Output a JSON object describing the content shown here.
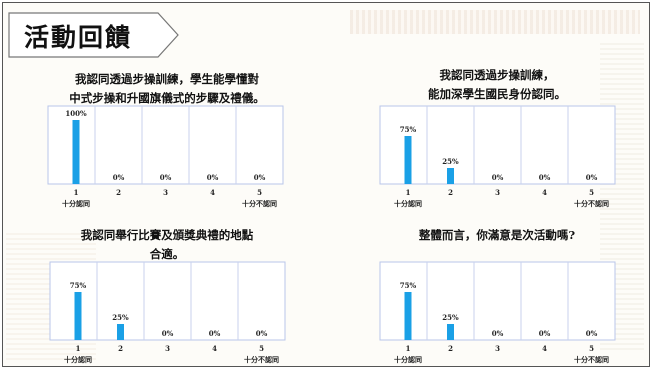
{
  "page_title": "活動回饋",
  "chart_data": [
    {
      "type": "bar",
      "title": "我認同透過步操訓練，學生能學懂對中式步操和升國旗儀式的步驟及禮儀。",
      "title_lines": [
        "我認同透過步操訓練，學生能學懂對",
        "中式步操和升國旗儀式的步驟及禮儀。"
      ],
      "categories": [
        "1",
        "2",
        "3",
        "4",
        "5"
      ],
      "values": [
        100,
        0,
        0,
        0,
        0
      ],
      "data_labels": [
        "100%",
        "0%",
        "0%",
        "0%",
        "0%"
      ],
      "scale_left": "十分認同",
      "scale_right": "十分不認同",
      "ylim": [
        0,
        100
      ],
      "bar_color": "#1aa0e6"
    },
    {
      "type": "bar",
      "title": "我認同透過步操訓練，能加深學生國民身份認同。",
      "title_lines": [
        "我認同透過步操訓練，",
        "能加深學生國民身份認同。"
      ],
      "categories": [
        "1",
        "2",
        "3",
        "4",
        "5"
      ],
      "values": [
        75,
        25,
        0,
        0,
        0
      ],
      "data_labels": [
        "75%",
        "25%",
        "0%",
        "0%",
        "0%"
      ],
      "scale_left": "十分認同",
      "scale_right": "十分不認同",
      "ylim": [
        0,
        100
      ],
      "bar_color": "#1aa0e6"
    },
    {
      "type": "bar",
      "title": "我認同舉行比賽及頒獎典禮的地點合適。",
      "title_lines": [
        "我認同舉行比賽及頒獎典禮的地點",
        "合適。"
      ],
      "categories": [
        "1",
        "2",
        "3",
        "4",
        "5"
      ],
      "values": [
        75,
        25,
        0,
        0,
        0
      ],
      "data_labels": [
        "75%",
        "25%",
        "0%",
        "0%",
        "0%"
      ],
      "scale_left": "十分認同",
      "scale_right": "十分不認同",
      "ylim": [
        0,
        100
      ],
      "bar_color": "#1aa0e6"
    },
    {
      "type": "bar",
      "title": "整體而言，你滿意是次活動嗎?",
      "title_lines": [
        "整體而言，你滿意是次活動嗎?"
      ],
      "categories": [
        "1",
        "2",
        "3",
        "4",
        "5"
      ],
      "values": [
        75,
        25,
        0,
        0,
        0
      ],
      "data_labels": [
        "75%",
        "25%",
        "0%",
        "0%",
        "0%"
      ],
      "scale_left": "十分認同",
      "scale_right": "十分不認同",
      "ylim": [
        0,
        100
      ],
      "bar_color": "#1aa0e6"
    }
  ]
}
